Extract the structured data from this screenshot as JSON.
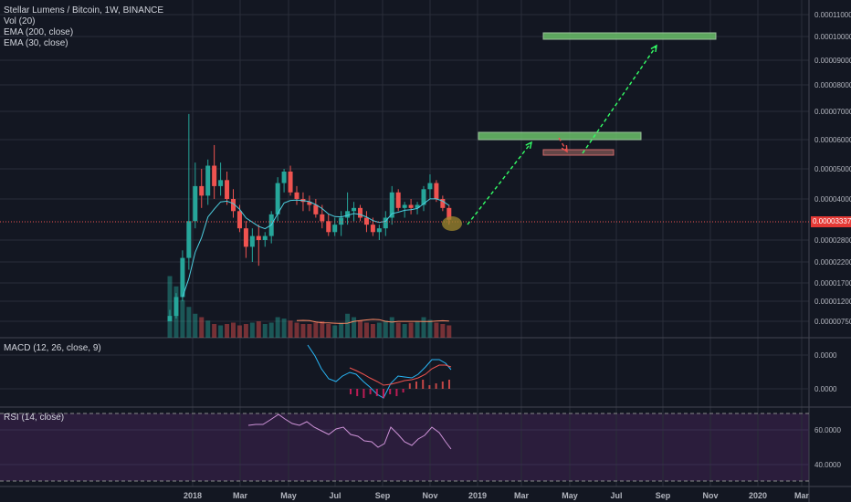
{
  "header": {
    "title": "Stellar Lumens / Bitcoin, 1W, BINANCE",
    "indicators": [
      "Vol (20)",
      "EMA (200, close)",
      "EMA (30, close)"
    ]
  },
  "price_axis": {
    "labels": [
      "0.00011000",
      "0.00010000",
      "0.00009000",
      "0.00008000",
      "0.00007000",
      "0.00006000",
      "0.00005000",
      "0.00004000",
      "0.00002800",
      "0.00002200",
      "0.00001700",
      "0.00001200",
      "0.00000750"
    ],
    "current_price": "0.00003337"
  },
  "time_axis": {
    "labels": [
      "2018",
      "Mar",
      "May",
      "Jul",
      "Sep",
      "Nov",
      "2019",
      "Mar",
      "May",
      "Jul",
      "Sep",
      "Nov",
      "2020",
      "Mar"
    ]
  },
  "macd_pane": {
    "title": "MACD (12, 26, close, 9)",
    "axis_labels": [
      "0.0000",
      "0.0000"
    ]
  },
  "rsi_pane": {
    "title": "RSI (14, close)",
    "axis_labels": [
      "60.0000",
      "40.0000"
    ]
  },
  "colors": {
    "background": "#131722",
    "grid": "#2a2e39",
    "up": "#26a69a",
    "down": "#ef5350",
    "annotation_box": "#6abf69",
    "annotation_arrow": "#33ff66",
    "rsi_fill": "#2b1d3c",
    "rsi_line": "#ce93d8",
    "macd_line": "#29b6f6",
    "signal_line": "#ef5350"
  },
  "chart_data": {
    "type": "candlestick",
    "symbol": "Stellar Lumens / Bitcoin",
    "interval": "1W",
    "exchange": "BINANCE",
    "candles": [
      {
        "o": 6.5e-06,
        "h": 9.8e-06,
        "l": 6e-06,
        "c": 8.5e-06
      },
      {
        "o": 8.5e-06,
        "h": 1.4e-05,
        "l": 8e-06,
        "c": 1.3e-05
      },
      {
        "o": 1.3e-05,
        "h": 2.5e-05,
        "l": 1.2e-05,
        "c": 2.3e-05
      },
      {
        "o": 2.3e-05,
        "h": 6.9e-05,
        "l": 2e-05,
        "c": 3.3e-05
      },
      {
        "o": 3.3e-05,
        "h": 5.2e-05,
        "l": 3.1e-05,
        "c": 4.4e-05
      },
      {
        "o": 4.4e-05,
        "h": 5e-05,
        "l": 3.7e-05,
        "c": 4.1e-05
      },
      {
        "o": 4.1e-05,
        "h": 5.3e-05,
        "l": 3.8e-05,
        "c": 5.1e-05
      },
      {
        "o": 5.1e-05,
        "h": 5.8e-05,
        "l": 4e-05,
        "c": 4.4e-05
      },
      {
        "o": 4.4e-05,
        "h": 5.2e-05,
        "l": 4.1e-05,
        "c": 4.6e-05
      },
      {
        "o": 4.6e-05,
        "h": 4.9e-05,
        "l": 3.8e-05,
        "c": 4e-05
      },
      {
        "o": 4e-05,
        "h": 4.3e-05,
        "l": 3.4e-05,
        "c": 3.6e-05
      },
      {
        "o": 3.6e-05,
        "h": 3.8e-05,
        "l": 3e-05,
        "c": 3.1e-05
      },
      {
        "o": 3.1e-05,
        "h": 3.3e-05,
        "l": 2.3e-05,
        "c": 2.6e-05
      },
      {
        "o": 2.6e-05,
        "h": 3.1e-05,
        "l": 2.2e-05,
        "c": 2.9e-05
      },
      {
        "o": 2.9e-05,
        "h": 3.2e-05,
        "l": 2.1e-05,
        "c": 2.8e-05
      },
      {
        "o": 2.8e-05,
        "h": 3e-05,
        "l": 2.6e-05,
        "c": 2.9e-05
      },
      {
        "o": 2.9e-05,
        "h": 3.6e-05,
        "l": 2.7e-05,
        "c": 3.5e-05
      },
      {
        "o": 3.5e-05,
        "h": 4.7e-05,
        "l": 3.3e-05,
        "c": 4.5e-05
      },
      {
        "o": 4.5e-05,
        "h": 5e-05,
        "l": 4.2e-05,
        "c": 4.9e-05
      },
      {
        "o": 4.9e-05,
        "h": 5.1e-05,
        "l": 4.1e-05,
        "c": 4.2e-05
      },
      {
        "o": 4.2e-05,
        "h": 4.4e-05,
        "l": 3.8e-05,
        "c": 4e-05
      },
      {
        "o": 4e-05,
        "h": 4.2e-05,
        "l": 3.6e-05,
        "c": 3.9e-05
      },
      {
        "o": 3.9e-05,
        "h": 4.1e-05,
        "l": 3.6e-05,
        "c": 3.8e-05
      },
      {
        "o": 3.8e-05,
        "h": 4e-05,
        "l": 3.4e-05,
        "c": 3.5e-05
      },
      {
        "o": 3.5e-05,
        "h": 3.8e-05,
        "l": 3.1e-05,
        "c": 3.3e-05
      },
      {
        "o": 3.3e-05,
        "h": 3.5e-05,
        "l": 2.9e-05,
        "c": 3e-05
      },
      {
        "o": 3e-05,
        "h": 3.4e-05,
        "l": 2.9e-05,
        "c": 3.2e-05
      },
      {
        "o": 3.2e-05,
        "h": 3.6e-05,
        "l": 2.9e-05,
        "c": 3.4e-05
      },
      {
        "o": 3.4e-05,
        "h": 4.2e-05,
        "l": 3.2e-05,
        "c": 3.6e-05
      },
      {
        "o": 3.6e-05,
        "h": 3.9e-05,
        "l": 3.3e-05,
        "c": 3.7e-05
      },
      {
        "o": 3.7e-05,
        "h": 3.8e-05,
        "l": 3.3e-05,
        "c": 3.4e-05
      },
      {
        "o": 3.4e-05,
        "h": 3.6e-05,
        "l": 3e-05,
        "c": 3.2e-05
      },
      {
        "o": 3.2e-05,
        "h": 3.4e-05,
        "l": 2.9e-05,
        "c": 3e-05
      },
      {
        "o": 3e-05,
        "h": 3.2e-05,
        "l": 2.8e-05,
        "c": 3.1e-05
      },
      {
        "o": 3.1e-05,
        "h": 3.6e-05,
        "l": 2.9e-05,
        "c": 3.4e-05
      },
      {
        "o": 3.4e-05,
        "h": 4.4e-05,
        "l": 3.2e-05,
        "c": 4.2e-05
      },
      {
        "o": 4.2e-05,
        "h": 4.3e-05,
        "l": 3.6e-05,
        "c": 3.7e-05
      },
      {
        "o": 3.7e-05,
        "h": 3.9e-05,
        "l": 3.4e-05,
        "c": 3.8e-05
      },
      {
        "o": 3.8e-05,
        "h": 4e-05,
        "l": 3.5e-05,
        "c": 3.7e-05
      },
      {
        "o": 3.7e-05,
        "h": 3.9e-05,
        "l": 3.5e-05,
        "c": 3.8e-05
      },
      {
        "o": 3.8e-05,
        "h": 4.4e-05,
        "l": 3.6e-05,
        "c": 4.3e-05
      },
      {
        "o": 4.3e-05,
        "h": 4.8e-05,
        "l": 4e-05,
        "c": 4.5e-05
      },
      {
        "o": 4.5e-05,
        "h": 4.6e-05,
        "l": 3.9e-05,
        "c": 4e-05
      },
      {
        "o": 4e-05,
        "h": 4.1e-05,
        "l": 3.6e-05,
        "c": 3.7e-05
      },
      {
        "o": 3.7e-05,
        "h": 3.8e-05,
        "l": 3.2e-05,
        "c": 3.34e-05
      }
    ],
    "volume_relative": [
      0.9,
      0.75,
      0.55,
      0.45,
      0.35,
      0.3,
      0.25,
      0.2,
      0.18,
      0.2,
      0.22,
      0.18,
      0.2,
      0.22,
      0.24,
      0.2,
      0.22,
      0.3,
      0.28,
      0.25,
      0.22,
      0.2,
      0.2,
      0.22,
      0.24,
      0.2,
      0.18,
      0.22,
      0.35,
      0.3,
      0.25,
      0.22,
      0.2,
      0.22,
      0.25,
      0.3,
      0.22,
      0.2,
      0.22,
      0.24,
      0.3,
      0.26,
      0.22,
      0.2,
      0.18
    ],
    "annotations": {
      "target_boxes": [
        {
          "from": "2019-03",
          "to": "2019-08",
          "price": 6.05e-05
        },
        {
          "from": "2019-05",
          "to": "2019-07",
          "price": 5.45e-05
        },
        {
          "from": "2019-04",
          "to": "2019-11",
          "price": 0.0001
        }
      ],
      "arrows": [
        {
          "from_date": "2018-12",
          "from_price": 3.1e-05,
          "to_date": "2019-03",
          "to_price": 5.9e-05,
          "color": "green"
        },
        {
          "from_date": "2019-04",
          "from_price": 6e-05,
          "to_date": "2019-05",
          "to_price": 5.55e-05,
          "color": "red"
        },
        {
          "from_date": "2019-05",
          "from_price": 5.45e-05,
          "to_date": "2019-09",
          "to_price": 9.65e-05,
          "color": "green"
        }
      ],
      "highlight": {
        "date": "2018-11",
        "price": 3.1e-05
      }
    }
  }
}
